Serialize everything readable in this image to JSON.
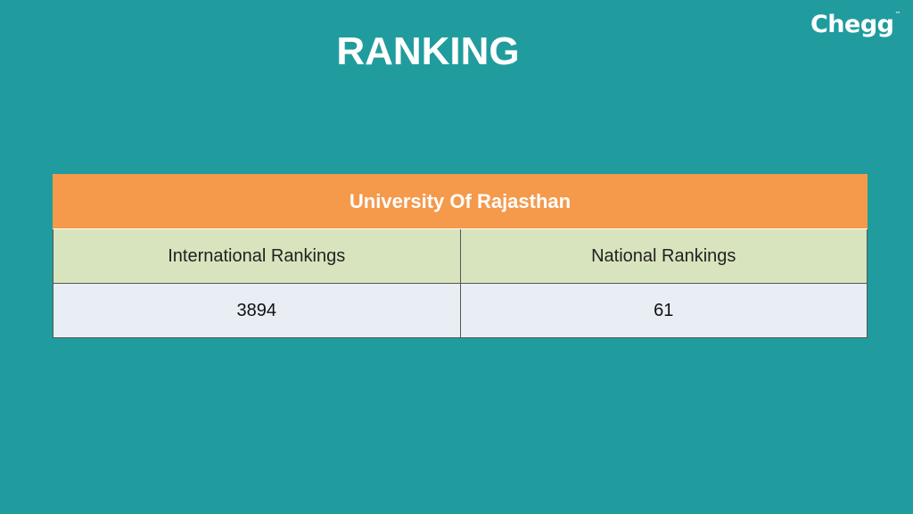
{
  "title": "RANKING",
  "brand": {
    "name": "Chegg",
    "mark": "™"
  },
  "table": {
    "university": "University Of Rajasthan",
    "columns": [
      "International Rankings",
      "National Rankings"
    ],
    "values": [
      "3894",
      "61"
    ]
  },
  "colors": {
    "background": "#219c9e",
    "header": "#f5994b",
    "column_row": "#d8e4bd",
    "value_row": "#e8eef4"
  }
}
